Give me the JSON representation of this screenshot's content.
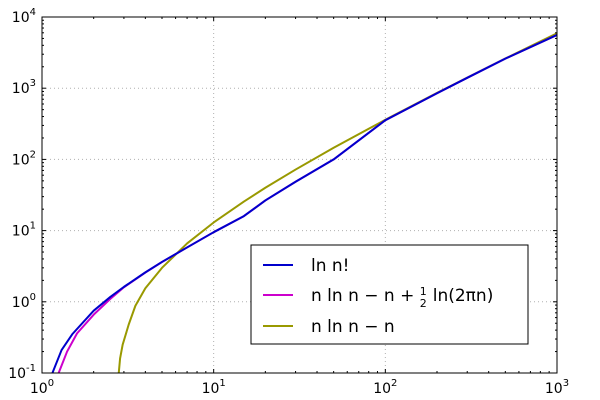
{
  "chart_data": {
    "type": "line",
    "title": "",
    "xlabel": "",
    "ylabel": "",
    "xscale": "log",
    "yscale": "log",
    "xlim": [
      1,
      1000
    ],
    "ylim": [
      0.1,
      10000
    ],
    "grid": true,
    "legend_position": "lower-right",
    "x_ticks": [
      {
        "base": "10",
        "exp": "0",
        "value": 1
      },
      {
        "base": "10",
        "exp": "1",
        "value": 10
      },
      {
        "base": "10",
        "exp": "2",
        "value": 100
      },
      {
        "base": "10",
        "exp": "3",
        "value": 1000
      }
    ],
    "y_ticks": [
      {
        "base": "10",
        "exp": "-1",
        "value": 0.1
      },
      {
        "base": "10",
        "exp": "0",
        "value": 1
      },
      {
        "base": "10",
        "exp": "1",
        "value": 10
      },
      {
        "base": "10",
        "exp": "2",
        "value": 100
      },
      {
        "base": "10",
        "exp": "3",
        "value": 1000
      },
      {
        "base": "10",
        "exp": "4",
        "value": 10000
      }
    ],
    "series": [
      {
        "name": "ln n!",
        "color": "#0000cc",
        "x": [
          1.15,
          1.3,
          1.5,
          2,
          2.5,
          3,
          4,
          5,
          7,
          10,
          15,
          20,
          30,
          50,
          100,
          200,
          300,
          500,
          1000
        ],
        "y": [
          0.1,
          0.21,
          0.35,
          0.75,
          1.17,
          1.62,
          2.59,
          3.63,
          5.8,
          9.5,
          16.0,
          26.5,
          48.5,
          100,
          355,
          850,
          1400,
          2600,
          5600
        ]
      },
      {
        "name": "n ln n − n + ½ ln(2πn)",
        "name_parts": {
          "before": "n ln n − n +",
          "frac_num": "1",
          "frac_den": "2",
          "after": "ln(2πn)"
        },
        "color": "#cc00cc",
        "x": [
          1.25,
          1.4,
          1.6,
          2,
          2.5,
          3,
          4,
          5,
          7,
          10,
          15,
          20,
          30,
          50,
          100,
          200,
          300,
          500,
          1000
        ],
        "y": [
          0.1,
          0.2,
          0.36,
          0.66,
          1.1,
          1.6,
          2.58,
          3.62,
          5.8,
          9.5,
          16.0,
          26.5,
          48.5,
          100,
          355,
          850,
          1400,
          2600,
          5600
        ]
      },
      {
        "name": "n ln n − n",
        "color": "#999900",
        "x": [
          2.8,
          2.85,
          2.95,
          3.2,
          3.5,
          4,
          5,
          7,
          10,
          15,
          20,
          30,
          50,
          100,
          200,
          300,
          500,
          1000
        ],
        "y": [
          0.1,
          0.16,
          0.25,
          0.48,
          0.88,
          1.55,
          3.0,
          6.6,
          13.0,
          25.6,
          40,
          72,
          146,
          360,
          860,
          1410,
          2610,
          5910
        ]
      }
    ]
  }
}
